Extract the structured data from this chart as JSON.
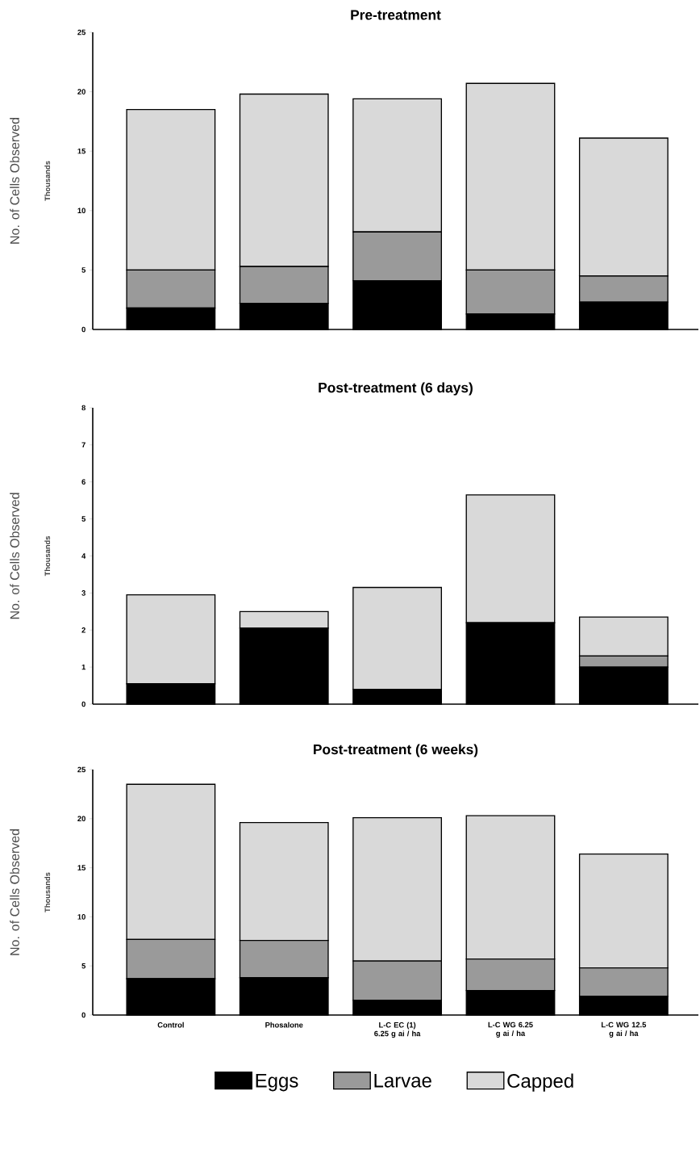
{
  "chart_data": [
    {
      "type": "bar",
      "title": "Pre-treatment",
      "ylabel": "No. of Cells Observed",
      "annotations": [
        "Thousands"
      ],
      "stacked": true,
      "tick_labels": "y",
      "categories": [
        null,
        null,
        null,
        null,
        null
      ],
      "ylim": [
        0,
        25
      ],
      "yticks": [
        0,
        5,
        10,
        15,
        20,
        25
      ],
      "series": [
        {
          "color": "#000000",
          "values": [
            1.8,
            2.2,
            4.1,
            1.3,
            2.3
          ]
        },
        {
          "color": "#9a9a9a",
          "values": [
            3.2,
            3.1,
            4.1,
            3.7,
            2.2
          ]
        },
        {
          "color": "#d9d9d9",
          "values": [
            13.5,
            14.5,
            11.2,
            15.7,
            11.6
          ]
        }
      ]
    },
    {
      "type": "bar",
      "title": "Post-treatment (6 days)",
      "ylabel": "No. of Cells Observed",
      "annotations": [
        "Thousands"
      ],
      "stacked": true,
      "tick_labels": "y",
      "categories": [
        null,
        null,
        null,
        null,
        null
      ],
      "ylim": [
        0,
        8
      ],
      "yticks": [
        0,
        1,
        2,
        3,
        4,
        5,
        6,
        7,
        8
      ],
      "series": [
        {
          "color": "#000000",
          "values": [
            0.55,
            2.05,
            0.4,
            2.2,
            1.0
          ]
        },
        {
          "color": "#9a9a9a",
          "values": [
            0,
            0,
            0,
            0,
            0.3
          ]
        },
        {
          "color": "#d9d9d9",
          "values": [
            2.4,
            0.45,
            2.75,
            3.45,
            1.05
          ]
        }
      ]
    },
    {
      "type": "bar",
      "title": "Post-treatment (6 weeks)",
      "ylabel": "No. of Cells Observed",
      "annotations": [
        "Thousands"
      ],
      "stacked": true,
      "legend": "bottom",
      "categories": [
        "Control",
        "Phosalone",
        "L-C EC (1) 6.25 g ai / ha",
        "L-C WG 6.25 g ai / ha",
        "L-C WG 12.5 g ai / ha"
      ],
      "ylim": [
        0,
        25
      ],
      "yticks": [
        0,
        5,
        10,
        15,
        20,
        25
      ],
      "series": [
        {
          "name": "Eggs",
          "color": "#000000",
          "values": [
            3.7,
            3.8,
            1.5,
            2.5,
            1.9
          ]
        },
        {
          "name": "Larvae",
          "color": "#9a9a9a",
          "values": [
            4.0,
            3.8,
            4.0,
            3.2,
            2.9
          ]
        },
        {
          "name": "Capped",
          "color": "#d9d9d9",
          "values": [
            15.8,
            12.0,
            14.6,
            14.6,
            11.6
          ]
        }
      ]
    }
  ]
}
